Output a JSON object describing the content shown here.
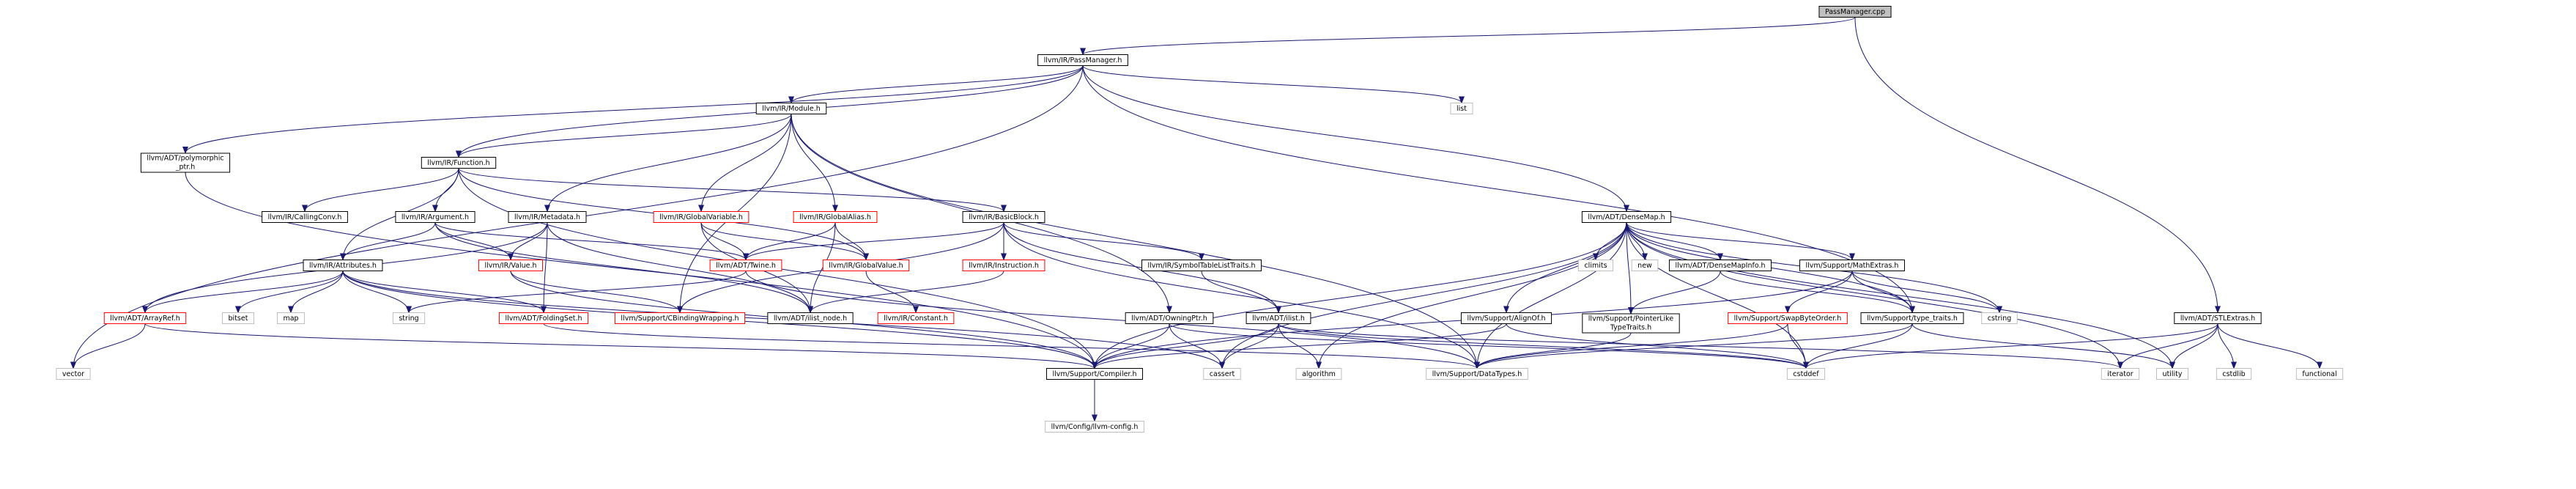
{
  "colors": {
    "edge": "#191970",
    "black": "#000000",
    "red": "#ff0000",
    "gray": "#bfbfbf",
    "root_fill": "#bfbfbf"
  },
  "nodes": [
    {
      "id": "PassManager_cpp",
      "lines": [
        "PassManager.cpp"
      ],
      "style": "root"
    },
    {
      "id": "PassManager_h",
      "lines": [
        "llvm/IR/PassManager.h"
      ],
      "style": "black"
    },
    {
      "id": "Module_h",
      "lines": [
        "llvm/IR/Module.h"
      ],
      "style": "black"
    },
    {
      "id": "list",
      "lines": [
        "list"
      ],
      "style": "gray"
    },
    {
      "id": "polymorphic_ptr",
      "lines": [
        "llvm/ADT/polymorphic",
        "_ptr.h"
      ],
      "style": "black"
    },
    {
      "id": "Function_h",
      "lines": [
        "llvm/IR/Function.h"
      ],
      "style": "black"
    },
    {
      "id": "CallingConv_h",
      "lines": [
        "llvm/IR/CallingConv.h"
      ],
      "style": "black"
    },
    {
      "id": "Argument_h",
      "lines": [
        "llvm/IR/Argument.h"
      ],
      "style": "black"
    },
    {
      "id": "Metadata_h",
      "lines": [
        "llvm/IR/Metadata.h"
      ],
      "style": "black"
    },
    {
      "id": "GlobalVariable_h",
      "lines": [
        "llvm/IR/GlobalVariable.h"
      ],
      "style": "red"
    },
    {
      "id": "GlobalAlias_h",
      "lines": [
        "llvm/IR/GlobalAlias.h"
      ],
      "style": "red"
    },
    {
      "id": "BasicBlock_h",
      "lines": [
        "llvm/IR/BasicBlock.h"
      ],
      "style": "black"
    },
    {
      "id": "Attributes_h",
      "lines": [
        "llvm/IR/Attributes.h"
      ],
      "style": "black"
    },
    {
      "id": "Value_h",
      "lines": [
        "llvm/IR/Value.h"
      ],
      "style": "red"
    },
    {
      "id": "Twine_h",
      "lines": [
        "llvm/ADT/Twine.h"
      ],
      "style": "red"
    },
    {
      "id": "GlobalValue_h",
      "lines": [
        "llvm/IR/GlobalValue.h"
      ],
      "style": "red"
    },
    {
      "id": "Instruction_h",
      "lines": [
        "llvm/IR/Instruction.h"
      ],
      "style": "red"
    },
    {
      "id": "SymbolTableListTraits_h",
      "lines": [
        "llvm/IR/SymbolTableListTraits.h"
      ],
      "style": "black"
    },
    {
      "id": "DenseMap_h",
      "lines": [
        "llvm/ADT/DenseMap.h"
      ],
      "style": "black"
    },
    {
      "id": "ArrayRef_h",
      "lines": [
        "llvm/ADT/ArrayRef.h"
      ],
      "style": "red"
    },
    {
      "id": "bitset",
      "lines": [
        "bitset"
      ],
      "style": "gray"
    },
    {
      "id": "map",
      "lines": [
        "map"
      ],
      "style": "gray"
    },
    {
      "id": "string",
      "lines": [
        "string"
      ],
      "style": "gray"
    },
    {
      "id": "FoldingSet_h",
      "lines": [
        "llvm/ADT/FoldingSet.h"
      ],
      "style": "red"
    },
    {
      "id": "CBindingWrapping_h",
      "lines": [
        "llvm/Support/CBindingWrapping.h"
      ],
      "style": "red"
    },
    {
      "id": "ilist_node_h",
      "lines": [
        "llvm/ADT/ilist_node.h"
      ],
      "style": "black"
    },
    {
      "id": "Constant_h",
      "lines": [
        "llvm/IR/Constant.h"
      ],
      "style": "red"
    },
    {
      "id": "OwningPtr_h",
      "lines": [
        "llvm/ADT/OwningPtr.h"
      ],
      "style": "black"
    },
    {
      "id": "ilist_h",
      "lines": [
        "llvm/ADT/ilist.h"
      ],
      "style": "black"
    },
    {
      "id": "climits",
      "lines": [
        "climits"
      ],
      "style": "gray"
    },
    {
      "id": "new",
      "lines": [
        "new"
      ],
      "style": "gray"
    },
    {
      "id": "DenseMapInfo_h",
      "lines": [
        "llvm/ADT/DenseMapInfo.h"
      ],
      "style": "black"
    },
    {
      "id": "MathExtras_h",
      "lines": [
        "llvm/Support/MathExtras.h"
      ],
      "style": "black"
    },
    {
      "id": "AlignOf_h",
      "lines": [
        "llvm/Support/AlignOf.h"
      ],
      "style": "black"
    },
    {
      "id": "PointerLikeTypeTraits_h",
      "lines": [
        "llvm/Support/PointerLike",
        "TypeTraits.h"
      ],
      "style": "black"
    },
    {
      "id": "SwapByteOrder_h",
      "lines": [
        "llvm/Support/SwapByteOrder.h"
      ],
      "style": "red"
    },
    {
      "id": "type_traits_h",
      "lines": [
        "llvm/Support/type_traits.h"
      ],
      "style": "black"
    },
    {
      "id": "cstring",
      "lines": [
        "cstring"
      ],
      "style": "gray"
    },
    {
      "id": "STLExtras_h",
      "lines": [
        "llvm/ADT/STLExtras.h"
      ],
      "style": "black"
    },
    {
      "id": "vector",
      "lines": [
        "vector"
      ],
      "style": "gray"
    },
    {
      "id": "Compiler_h",
      "lines": [
        "llvm/Support/Compiler.h"
      ],
      "style": "black"
    },
    {
      "id": "cassert",
      "lines": [
        "cassert"
      ],
      "style": "gray"
    },
    {
      "id": "algorithm",
      "lines": [
        "algorithm"
      ],
      "style": "gray"
    },
    {
      "id": "DataTypes_h",
      "lines": [
        "llvm/Support/DataTypes.h"
      ],
      "style": "gray"
    },
    {
      "id": "cstddef",
      "lines": [
        "cstddef"
      ],
      "style": "gray"
    },
    {
      "id": "iterator",
      "lines": [
        "iterator"
      ],
      "style": "gray"
    },
    {
      "id": "utility",
      "lines": [
        "utility"
      ],
      "style": "gray"
    },
    {
      "id": "cstdlib",
      "lines": [
        "cstdlib"
      ],
      "style": "gray"
    },
    {
      "id": "functional",
      "lines": [
        "functional"
      ],
      "style": "gray"
    },
    {
      "id": "llvm_config_h",
      "lines": [
        "llvm/Config/llvm-config.h"
      ],
      "style": "gray"
    }
  ],
  "edges": [
    [
      "PassManager_cpp",
      "PassManager_h"
    ],
    [
      "PassManager_cpp",
      "STLExtras_h"
    ],
    [
      "PassManager_h",
      "Module_h"
    ],
    [
      "PassManager_h",
      "Function_h"
    ],
    [
      "PassManager_h",
      "polymorphic_ptr"
    ],
    [
      "PassManager_h",
      "list"
    ],
    [
      "PassManager_h",
      "vector"
    ],
    [
      "PassManager_h",
      "DenseMap_h"
    ],
    [
      "PassManager_h",
      "type_traits_h"
    ],
    [
      "Module_h",
      "Function_h"
    ],
    [
      "Module_h",
      "Metadata_h"
    ],
    [
      "Module_h",
      "GlobalVariable_h"
    ],
    [
      "Module_h",
      "GlobalAlias_h"
    ],
    [
      "Module_h",
      "OwningPtr_h"
    ],
    [
      "Module_h",
      "DataTypes_h"
    ],
    [
      "Module_h",
      "CBindingWrapping_h"
    ],
    [
      "polymorphic_ptr",
      "Compiler_h"
    ],
    [
      "Function_h",
      "CallingConv_h"
    ],
    [
      "Function_h",
      "Argument_h"
    ],
    [
      "Function_h",
      "Attributes_h"
    ],
    [
      "Function_h",
      "BasicBlock_h"
    ],
    [
      "Function_h",
      "GlobalValue_h"
    ],
    [
      "Function_h",
      "Compiler_h"
    ],
    [
      "Argument_h",
      "Attributes_h"
    ],
    [
      "Argument_h",
      "Value_h"
    ],
    [
      "Argument_h",
      "Twine_h"
    ],
    [
      "Argument_h",
      "ilist_node_h"
    ],
    [
      "Metadata_h",
      "Value_h"
    ],
    [
      "Metadata_h",
      "ArrayRef_h"
    ],
    [
      "Metadata_h",
      "FoldingSet_h"
    ],
    [
      "Metadata_h",
      "ilist_node_h"
    ],
    [
      "GlobalVariable_h",
      "Twine_h"
    ],
    [
      "GlobalVariable_h",
      "GlobalValue_h"
    ],
    [
      "GlobalVariable_h",
      "ilist_node_h"
    ],
    [
      "GlobalAlias_h",
      "Twine_h"
    ],
    [
      "GlobalAlias_h",
      "GlobalValue_h"
    ],
    [
      "GlobalAlias_h",
      "ilist_node_h"
    ],
    [
      "BasicBlock_h",
      "Twine_h"
    ],
    [
      "BasicBlock_h",
      "Instruction_h"
    ],
    [
      "BasicBlock_h",
      "SymbolTableListTraits_h"
    ],
    [
      "BasicBlock_h",
      "ilist_h"
    ],
    [
      "BasicBlock_h",
      "DataTypes_h"
    ],
    [
      "BasicBlock_h",
      "CBindingWrapping_h"
    ],
    [
      "Attributes_h",
      "ArrayRef_h"
    ],
    [
      "Attributes_h",
      "bitset"
    ],
    [
      "Attributes_h",
      "map"
    ],
    [
      "Attributes_h",
      "string"
    ],
    [
      "Attributes_h",
      "FoldingSet_h"
    ],
    [
      "Attributes_h",
      "Compiler_h"
    ],
    [
      "Attributes_h",
      "cassert"
    ],
    [
      "Value_h",
      "CBindingWrapping_h"
    ],
    [
      "Value_h",
      "Compiler_h"
    ],
    [
      "Twine_h",
      "string"
    ],
    [
      "Twine_h",
      "DataTypes_h"
    ],
    [
      "GlobalValue_h",
      "Constant_h"
    ],
    [
      "Instruction_h",
      "ilist_node_h"
    ],
    [
      "SymbolTableListTraits_h",
      "ilist_h"
    ],
    [
      "DenseMap_h",
      "Compiler_h"
    ],
    [
      "DenseMap_h",
      "cassert"
    ],
    [
      "DenseMap_h",
      "algorithm"
    ],
    [
      "DenseMap_h",
      "DataTypes_h"
    ],
    [
      "DenseMap_h",
      "climits"
    ],
    [
      "DenseMap_h",
      "new"
    ],
    [
      "DenseMap_h",
      "DenseMapInfo_h"
    ],
    [
      "DenseMap_h",
      "MathExtras_h"
    ],
    [
      "DenseMap_h",
      "AlignOf_h"
    ],
    [
      "DenseMap_h",
      "PointerLikeTypeTraits_h"
    ],
    [
      "DenseMap_h",
      "type_traits_h"
    ],
    [
      "DenseMap_h",
      "cstring"
    ],
    [
      "DenseMap_h",
      "cstddef"
    ],
    [
      "DenseMap_h",
      "iterator"
    ],
    [
      "DenseMap_h",
      "utility"
    ],
    [
      "ArrayRef_h",
      "vector"
    ],
    [
      "ArrayRef_h",
      "Compiler_h"
    ],
    [
      "FoldingSet_h",
      "DataTypes_h"
    ],
    [
      "OwningPtr_h",
      "Compiler_h"
    ],
    [
      "OwningPtr_h",
      "cassert"
    ],
    [
      "OwningPtr_h",
      "cstddef"
    ],
    [
      "ilist_h",
      "Compiler_h"
    ],
    [
      "ilist_h",
      "cassert"
    ],
    [
      "ilist_h",
      "algorithm"
    ],
    [
      "ilist_h",
      "cstddef"
    ],
    [
      "ilist_h",
      "iterator"
    ],
    [
      "DenseMapInfo_h",
      "PointerLikeTypeTraits_h"
    ],
    [
      "DenseMapInfo_h",
      "type_traits_h"
    ],
    [
      "MathExtras_h",
      "Compiler_h"
    ],
    [
      "MathExtras_h",
      "SwapByteOrder_h"
    ],
    [
      "MathExtras_h",
      "type_traits_h"
    ],
    [
      "MathExtras_h",
      "cstring"
    ],
    [
      "AlignOf_h",
      "Compiler_h"
    ],
    [
      "AlignOf_h",
      "cstddef"
    ],
    [
      "PointerLikeTypeTraits_h",
      "DataTypes_h"
    ],
    [
      "SwapByteOrder_h",
      "DataTypes_h"
    ],
    [
      "SwapByteOrder_h",
      "cstddef"
    ],
    [
      "type_traits_h",
      "DataTypes_h"
    ],
    [
      "type_traits_h",
      "cstddef"
    ],
    [
      "type_traits_h",
      "utility"
    ],
    [
      "STLExtras_h",
      "cstddef"
    ],
    [
      "STLExtras_h",
      "iterator"
    ],
    [
      "STLExtras_h",
      "utility"
    ],
    [
      "STLExtras_h",
      "cstdlib"
    ],
    [
      "STLExtras_h",
      "functional"
    ],
    [
      "Compiler_h",
      "llvm_config_h"
    ]
  ]
}
